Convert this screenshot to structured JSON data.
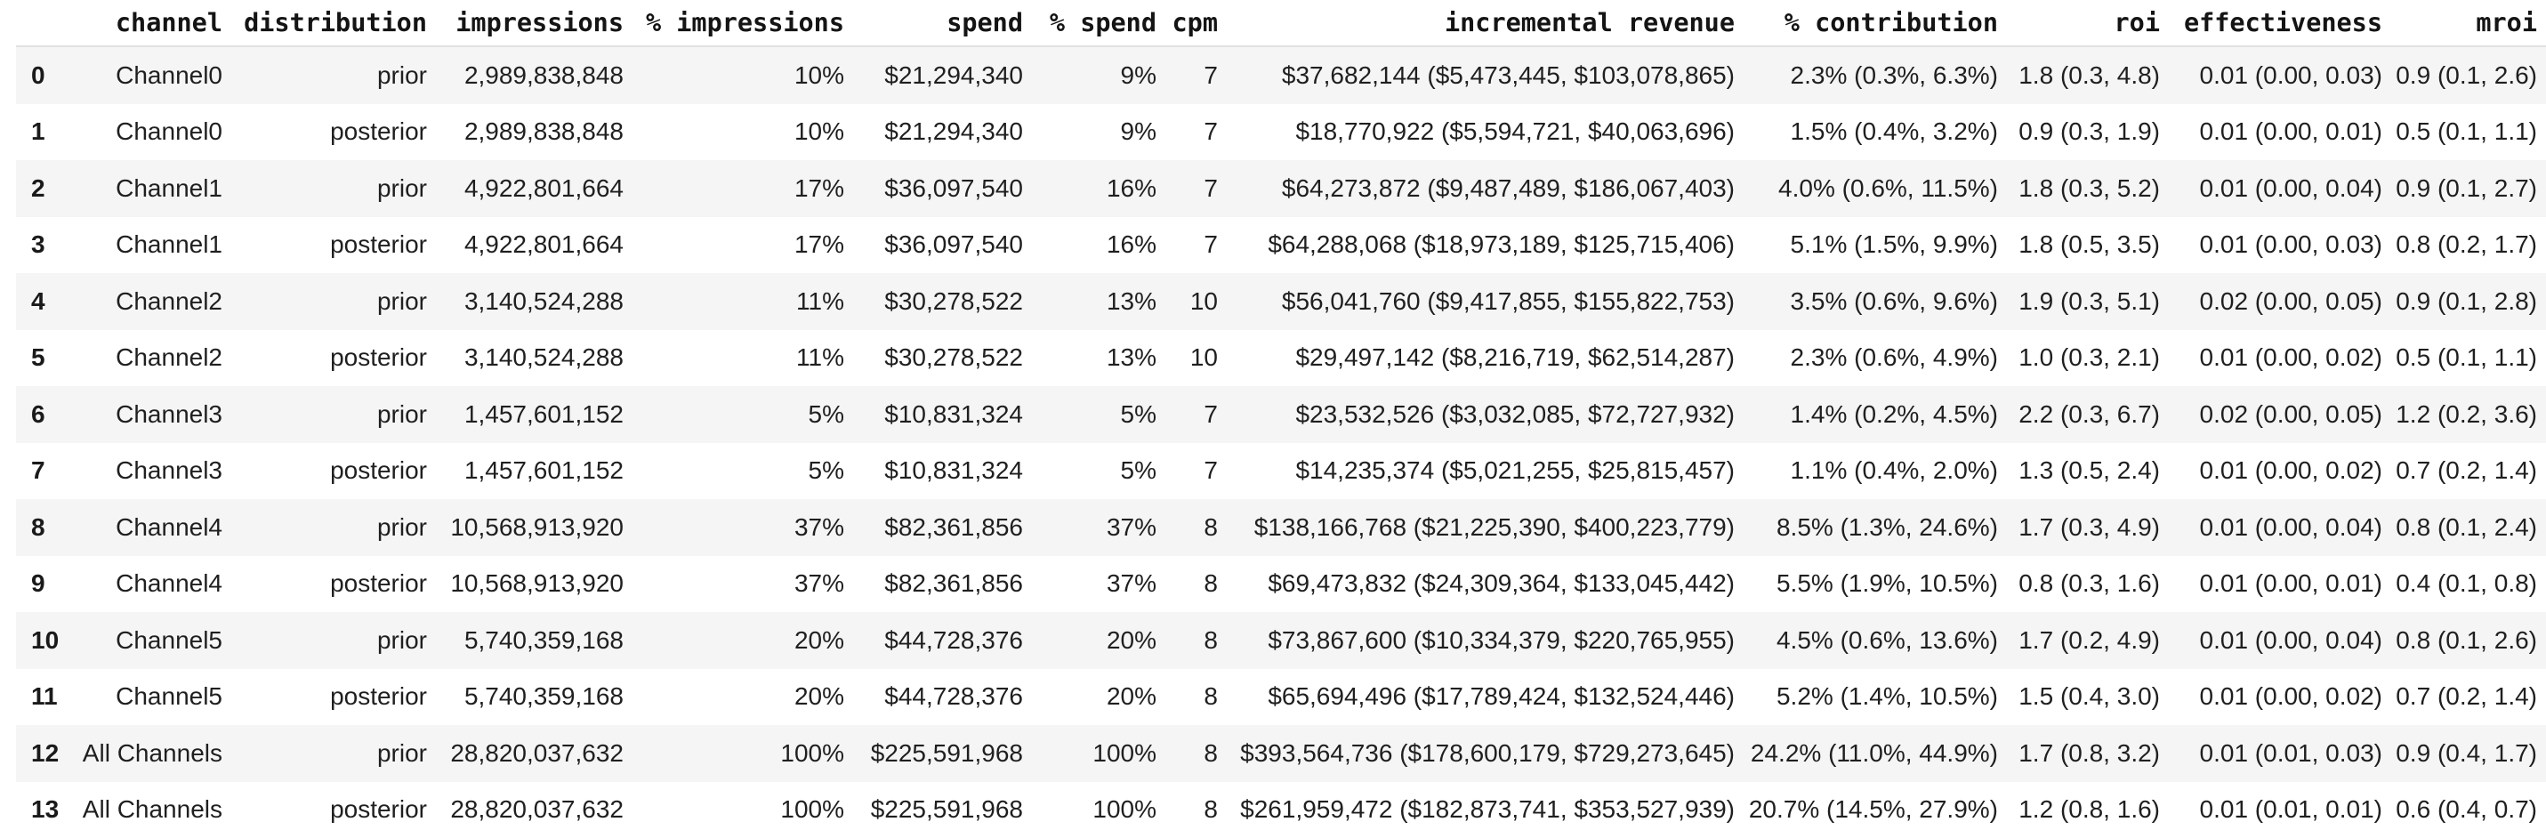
{
  "title": "media channel contribution summary table",
  "colors": {
    "row_stripe": "#f5f5f5",
    "row_plain": "#ffffff",
    "text": "#1f1f1f",
    "header_border": "#e1e1e1"
  },
  "chart_data": {
    "type": "table",
    "columns": [
      "",
      "channel",
      "distribution",
      "impressions",
      "% impressions",
      "spend",
      "% spend",
      "cpm",
      "incremental revenue",
      "% contribution",
      "roi",
      "effectiveness",
      "mroi"
    ],
    "rows": [
      [
        "0",
        "Channel0",
        "prior",
        "2,989,838,848",
        "10%",
        "$21,294,340",
        "9%",
        "7",
        "$37,682,144 ($5,473,445, $103,078,865)",
        "2.3% (0.3%, 6.3%)",
        "1.8 (0.3, 4.8)",
        "0.01 (0.00, 0.03)",
        "0.9 (0.1, 2.6)"
      ],
      [
        "1",
        "Channel0",
        "posterior",
        "2,989,838,848",
        "10%",
        "$21,294,340",
        "9%",
        "7",
        "$18,770,922 ($5,594,721, $40,063,696)",
        "1.5% (0.4%, 3.2%)",
        "0.9 (0.3, 1.9)",
        "0.01 (0.00, 0.01)",
        "0.5 (0.1, 1.1)"
      ],
      [
        "2",
        "Channel1",
        "prior",
        "4,922,801,664",
        "17%",
        "$36,097,540",
        "16%",
        "7",
        "$64,273,872 ($9,487,489, $186,067,403)",
        "4.0% (0.6%, 11.5%)",
        "1.8 (0.3, 5.2)",
        "0.01 (0.00, 0.04)",
        "0.9 (0.1, 2.7)"
      ],
      [
        "3",
        "Channel1",
        "posterior",
        "4,922,801,664",
        "17%",
        "$36,097,540",
        "16%",
        "7",
        "$64,288,068 ($18,973,189, $125,715,406)",
        "5.1% (1.5%, 9.9%)",
        "1.8 (0.5, 3.5)",
        "0.01 (0.00, 0.03)",
        "0.8 (0.2, 1.7)"
      ],
      [
        "4",
        "Channel2",
        "prior",
        "3,140,524,288",
        "11%",
        "$30,278,522",
        "13%",
        "10",
        "$56,041,760 ($9,417,855, $155,822,753)",
        "3.5% (0.6%, 9.6%)",
        "1.9 (0.3, 5.1)",
        "0.02 (0.00, 0.05)",
        "0.9 (0.1, 2.8)"
      ],
      [
        "5",
        "Channel2",
        "posterior",
        "3,140,524,288",
        "11%",
        "$30,278,522",
        "13%",
        "10",
        "$29,497,142 ($8,216,719, $62,514,287)",
        "2.3% (0.6%, 4.9%)",
        "1.0 (0.3, 2.1)",
        "0.01 (0.00, 0.02)",
        "0.5 (0.1, 1.1)"
      ],
      [
        "6",
        "Channel3",
        "prior",
        "1,457,601,152",
        "5%",
        "$10,831,324",
        "5%",
        "7",
        "$23,532,526 ($3,032,085, $72,727,932)",
        "1.4% (0.2%, 4.5%)",
        "2.2 (0.3, 6.7)",
        "0.02 (0.00, 0.05)",
        "1.2 (0.2, 3.6)"
      ],
      [
        "7",
        "Channel3",
        "posterior",
        "1,457,601,152",
        "5%",
        "$10,831,324",
        "5%",
        "7",
        "$14,235,374 ($5,021,255, $25,815,457)",
        "1.1% (0.4%, 2.0%)",
        "1.3 (0.5, 2.4)",
        "0.01 (0.00, 0.02)",
        "0.7 (0.2, 1.4)"
      ],
      [
        "8",
        "Channel4",
        "prior",
        "10,568,913,920",
        "37%",
        "$82,361,856",
        "37%",
        "8",
        "$138,166,768 ($21,225,390, $400,223,779)",
        "8.5% (1.3%, 24.6%)",
        "1.7 (0.3, 4.9)",
        "0.01 (0.00, 0.04)",
        "0.8 (0.1, 2.4)"
      ],
      [
        "9",
        "Channel4",
        "posterior",
        "10,568,913,920",
        "37%",
        "$82,361,856",
        "37%",
        "8",
        "$69,473,832 ($24,309,364, $133,045,442)",
        "5.5% (1.9%, 10.5%)",
        "0.8 (0.3, 1.6)",
        "0.01 (0.00, 0.01)",
        "0.4 (0.1, 0.8)"
      ],
      [
        "10",
        "Channel5",
        "prior",
        "5,740,359,168",
        "20%",
        "$44,728,376",
        "20%",
        "8",
        "$73,867,600 ($10,334,379, $220,765,955)",
        "4.5% (0.6%, 13.6%)",
        "1.7 (0.2, 4.9)",
        "0.01 (0.00, 0.04)",
        "0.8 (0.1, 2.6)"
      ],
      [
        "11",
        "Channel5",
        "posterior",
        "5,740,359,168",
        "20%",
        "$44,728,376",
        "20%",
        "8",
        "$65,694,496 ($17,789,424, $132,524,446)",
        "5.2% (1.4%, 10.5%)",
        "1.5 (0.4, 3.0)",
        "0.01 (0.00, 0.02)",
        "0.7 (0.2, 1.4)"
      ],
      [
        "12",
        "All Channels",
        "prior",
        "28,820,037,632",
        "100%",
        "$225,591,968",
        "100%",
        "8",
        "$393,564,736 ($178,600,179, $729,273,645)",
        "24.2% (11.0%, 44.9%)",
        "1.7 (0.8, 3.2)",
        "0.01 (0.01, 0.03)",
        "0.9 (0.4, 1.7)"
      ],
      [
        "13",
        "All Channels",
        "posterior",
        "28,820,037,632",
        "100%",
        "$225,591,968",
        "100%",
        "8",
        "$261,959,472 ($182,873,741, $353,527,939)",
        "20.7% (14.5%, 27.9%)",
        "1.2 (0.8, 1.6)",
        "0.01 (0.01, 0.01)",
        "0.6 (0.4, 0.7)"
      ]
    ]
  }
}
